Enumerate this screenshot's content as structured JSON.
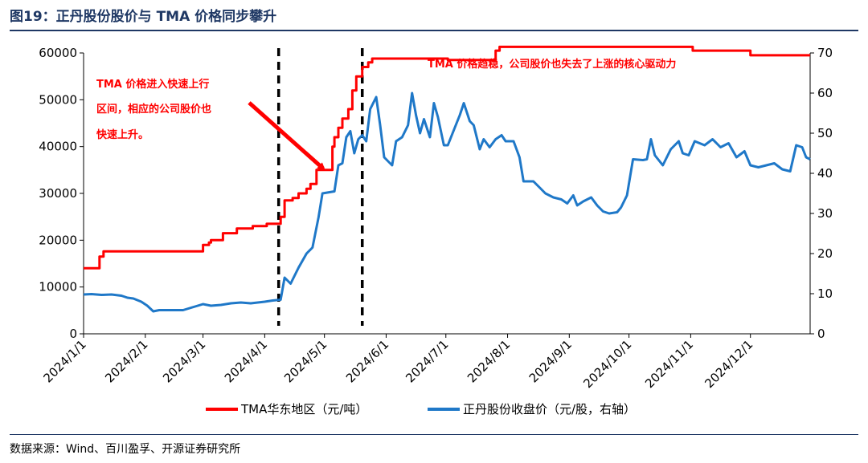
{
  "figure": {
    "title": "图19：正丹股份股价与 TMA 价格同步攀升",
    "source": "数据来源：Wind、百川盈孚、开源证券研究所"
  },
  "colors": {
    "tma": "#ff0000",
    "stock": "#1f78c8",
    "title": "#1f3864"
  },
  "chart_data": {
    "type": "line",
    "title": "",
    "xlabel": "",
    "ylabel": "",
    "y2label": "",
    "ylim": [
      0,
      60000
    ],
    "y2lim": [
      0,
      70
    ],
    "xlim": [
      "2024-01-01",
      "2024-12-31"
    ],
    "yticks": [
      "0",
      "10000",
      "20000",
      "30000",
      "40000",
      "50000",
      "60000"
    ],
    "y2ticks": [
      "0",
      "10",
      "20",
      "30",
      "40",
      "50",
      "60",
      "70"
    ],
    "xticks": [
      "2024/1/1",
      "2024/2/1",
      "2024/3/1",
      "2024/4/1",
      "2024/5/1",
      "2024/6/1",
      "2024/7/1",
      "2024/8/1",
      "2024/9/1",
      "2024/10/1",
      "2024/11/1",
      "2024/12/1"
    ],
    "xtick_dates": [
      "2024-01-01",
      "2024-02-01",
      "2024-03-01",
      "2024-04-01",
      "2024-05-01",
      "2024-06-01",
      "2024-07-01",
      "2024-08-01",
      "2024-09-01",
      "2024-10-01",
      "2024-11-01",
      "2024-12-01"
    ],
    "legend_position": "bottom",
    "grid": false,
    "vlines": [
      "2024-04-08",
      "2024-05-20"
    ],
    "series": [
      {
        "name": "TMA华东地区（元/吨）",
        "axis": "left",
        "step": true,
        "points": [
          [
            "2024-01-01",
            14000
          ],
          [
            "2024-01-08",
            14000
          ],
          [
            "2024-01-09",
            16500
          ],
          [
            "2024-01-10",
            16500
          ],
          [
            "2024-01-11",
            17600
          ],
          [
            "2024-02-28",
            17600
          ],
          [
            "2024-03-01",
            19000
          ],
          [
            "2024-03-04",
            19500
          ],
          [
            "2024-03-05",
            20000
          ],
          [
            "2024-03-08",
            20000
          ],
          [
            "2024-03-11",
            21500
          ],
          [
            "2024-03-15",
            21500
          ],
          [
            "2024-03-18",
            22500
          ],
          [
            "2024-03-25",
            22500
          ],
          [
            "2024-03-26",
            23000
          ],
          [
            "2024-04-01",
            23000
          ],
          [
            "2024-04-02",
            23500
          ],
          [
            "2024-04-08",
            23500
          ],
          [
            "2024-04-09",
            25000
          ],
          [
            "2024-04-10",
            25000
          ],
          [
            "2024-04-11",
            28500
          ],
          [
            "2024-04-15",
            29000
          ],
          [
            "2024-04-18",
            30000
          ],
          [
            "2024-04-22",
            31000
          ],
          [
            "2024-04-24",
            32000
          ],
          [
            "2024-04-27",
            35000
          ],
          [
            "2024-04-30",
            35000
          ],
          [
            "2024-05-05",
            40000
          ],
          [
            "2024-05-06",
            42000
          ],
          [
            "2024-05-08",
            44000
          ],
          [
            "2024-05-10",
            46000
          ],
          [
            "2024-05-13",
            48000
          ],
          [
            "2024-05-15",
            52000
          ],
          [
            "2024-05-17",
            55000
          ],
          [
            "2024-05-20",
            57000
          ],
          [
            "2024-05-23",
            58000
          ],
          [
            "2024-05-25",
            58800
          ],
          [
            "2024-07-01",
            58800
          ],
          [
            "2024-07-02",
            58500
          ],
          [
            "2024-07-25",
            58500
          ],
          [
            "2024-07-26",
            60500
          ],
          [
            "2024-07-28",
            61300
          ],
          [
            "2024-11-01",
            61300
          ],
          [
            "2024-11-02",
            60500
          ],
          [
            "2024-11-30",
            60500
          ],
          [
            "2024-12-01",
            59500
          ],
          [
            "2024-12-31",
            59500
          ]
        ]
      },
      {
        "name": "正丹股份收盘价（元/股，右轴）",
        "axis": "right",
        "step": false,
        "points": [
          [
            "2024-01-01",
            9.8
          ],
          [
            "2024-01-05",
            9.9
          ],
          [
            "2024-01-10",
            9.7
          ],
          [
            "2024-01-15",
            9.8
          ],
          [
            "2024-01-20",
            9.5
          ],
          [
            "2024-01-23",
            9.0
          ],
          [
            "2024-01-26",
            8.8
          ],
          [
            "2024-01-30",
            8.0
          ],
          [
            "2024-02-02",
            7.0
          ],
          [
            "2024-02-05",
            5.6
          ],
          [
            "2024-02-08",
            5.9
          ],
          [
            "2024-02-20",
            5.9
          ],
          [
            "2024-02-26",
            6.8
          ],
          [
            "2024-03-01",
            7.4
          ],
          [
            "2024-03-05",
            7.0
          ],
          [
            "2024-03-10",
            7.2
          ],
          [
            "2024-03-15",
            7.6
          ],
          [
            "2024-03-20",
            7.8
          ],
          [
            "2024-03-25",
            7.6
          ],
          [
            "2024-04-01",
            8.0
          ],
          [
            "2024-04-05",
            8.3
          ],
          [
            "2024-04-09",
            8.5
          ],
          [
            "2024-04-11",
            14.0
          ],
          [
            "2024-04-14",
            12.5
          ],
          [
            "2024-04-18",
            16.5
          ],
          [
            "2024-04-22",
            20.0
          ],
          [
            "2024-04-25",
            21.5
          ],
          [
            "2024-04-28",
            29.0
          ],
          [
            "2024-04-30",
            35.0
          ],
          [
            "2024-05-06",
            35.5
          ],
          [
            "2024-05-08",
            42.0
          ],
          [
            "2024-05-10",
            42.5
          ],
          [
            "2024-05-12",
            49.0
          ],
          [
            "2024-05-14",
            50.5
          ],
          [
            "2024-05-16",
            45.0
          ],
          [
            "2024-05-18",
            48.5
          ],
          [
            "2024-05-20",
            49.5
          ],
          [
            "2024-05-22",
            48.0
          ],
          [
            "2024-05-24",
            56.0
          ],
          [
            "2024-05-27",
            59.0
          ],
          [
            "2024-05-29",
            52.0
          ],
          [
            "2024-05-31",
            44.0
          ],
          [
            "2024-06-02",
            43.0
          ],
          [
            "2024-06-04",
            42.0
          ],
          [
            "2024-06-06",
            48.0
          ],
          [
            "2024-06-09",
            49.0
          ],
          [
            "2024-06-12",
            52.0
          ],
          [
            "2024-06-14",
            60.0
          ],
          [
            "2024-06-16",
            54.5
          ],
          [
            "2024-06-18",
            50.0
          ],
          [
            "2024-06-20",
            53.5
          ],
          [
            "2024-06-23",
            49.0
          ],
          [
            "2024-06-25",
            57.5
          ],
          [
            "2024-06-27",
            54.0
          ],
          [
            "2024-06-30",
            47.0
          ],
          [
            "2024-07-02",
            47.0
          ],
          [
            "2024-07-06",
            52.0
          ],
          [
            "2024-07-08",
            54.5
          ],
          [
            "2024-07-10",
            57.5
          ],
          [
            "2024-07-13",
            53.0
          ],
          [
            "2024-07-15",
            52.0
          ],
          [
            "2024-07-18",
            46.0
          ],
          [
            "2024-07-20",
            48.5
          ],
          [
            "2024-07-23",
            46.5
          ],
          [
            "2024-07-26",
            48.5
          ],
          [
            "2024-07-29",
            49.5
          ],
          [
            "2024-07-31",
            48.0
          ],
          [
            "2024-08-04",
            48.0
          ],
          [
            "2024-08-07",
            44.0
          ],
          [
            "2024-08-09",
            38.0
          ],
          [
            "2024-08-14",
            38.0
          ],
          [
            "2024-08-17",
            36.5
          ],
          [
            "2024-08-20",
            35.0
          ],
          [
            "2024-08-24",
            34.0
          ],
          [
            "2024-08-28",
            33.5
          ],
          [
            "2024-08-31",
            32.5
          ],
          [
            "2024-09-03",
            34.5
          ],
          [
            "2024-09-05",
            32.0
          ],
          [
            "2024-09-08",
            33.0
          ],
          [
            "2024-09-12",
            34.0
          ],
          [
            "2024-09-15",
            32.0
          ],
          [
            "2024-09-18",
            30.5
          ],
          [
            "2024-09-21",
            30.0
          ],
          [
            "2024-09-25",
            30.3
          ],
          [
            "2024-09-27",
            31.5
          ],
          [
            "2024-09-30",
            34.5
          ],
          [
            "2024-10-03",
            43.5
          ],
          [
            "2024-10-08",
            43.3
          ],
          [
            "2024-10-10",
            43.5
          ],
          [
            "2024-10-12",
            48.5
          ],
          [
            "2024-10-14",
            44.5
          ],
          [
            "2024-10-18",
            42.0
          ],
          [
            "2024-10-22",
            46.0
          ],
          [
            "2024-10-26",
            48.0
          ],
          [
            "2024-10-28",
            45.0
          ],
          [
            "2024-10-31",
            44.5
          ],
          [
            "2024-11-03",
            48.0
          ],
          [
            "2024-11-08",
            47.0
          ],
          [
            "2024-11-12",
            48.5
          ],
          [
            "2024-11-16",
            46.5
          ],
          [
            "2024-11-20",
            47.5
          ],
          [
            "2024-11-24",
            44.0
          ],
          [
            "2024-11-28",
            45.5
          ],
          [
            "2024-12-01",
            42.0
          ],
          [
            "2024-12-05",
            41.5
          ],
          [
            "2024-12-09",
            42.0
          ],
          [
            "2024-12-13",
            42.5
          ],
          [
            "2024-12-17",
            41.0
          ],
          [
            "2024-12-21",
            40.5
          ],
          [
            "2024-12-24",
            47.0
          ],
          [
            "2024-12-27",
            46.5
          ],
          [
            "2024-12-29",
            44.0
          ],
          [
            "2024-12-31",
            43.5
          ]
        ]
      }
    ],
    "annotations": [
      {
        "lines": [
          "TMA 价格进入快速上行",
          "区间，相应的公司股价也",
          "快速上升。"
        ]
      },
      {
        "lines": [
          "TMA 价格趋稳，公司股价也失去了上涨的核心驱动力"
        ]
      }
    ]
  }
}
